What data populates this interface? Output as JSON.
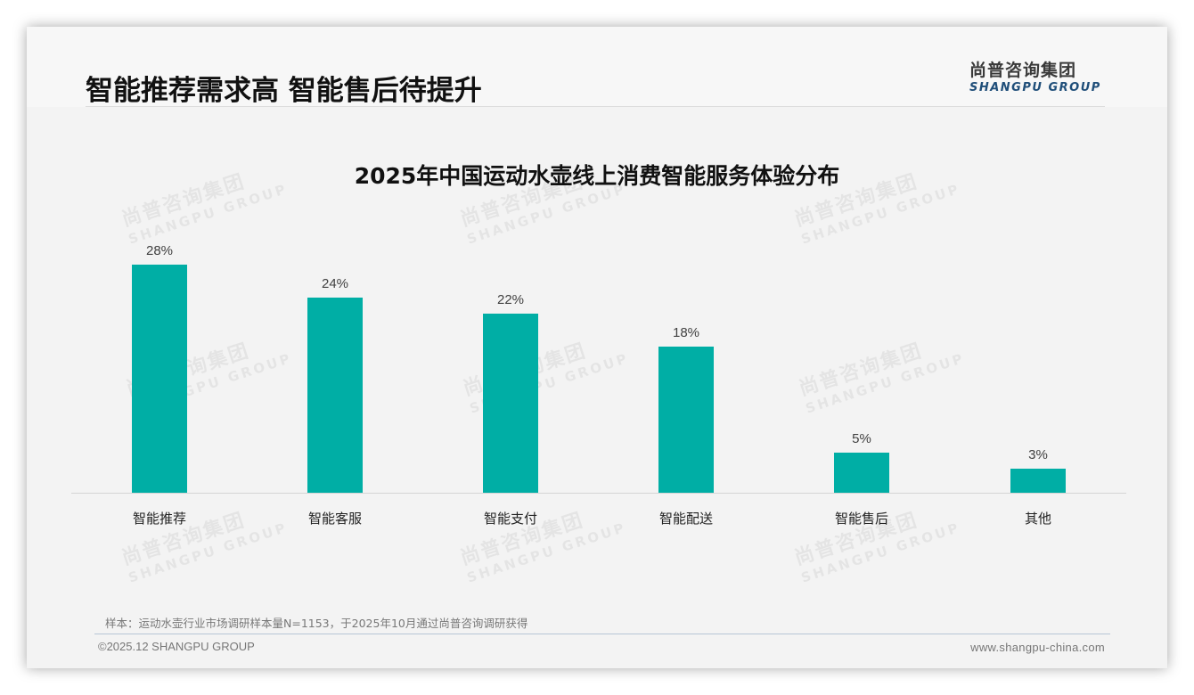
{
  "header": {
    "title": "智能推荐需求高 智能售后待提升",
    "logo_cn": "尚普咨询集团",
    "logo_en": "SHANGPU GROUP"
  },
  "watermark": {
    "cn": "尚普咨询集团",
    "en": "SHANGPU GROUP"
  },
  "colors": {
    "bar": "#00aea5",
    "logo_en": "#1f4e79"
  },
  "chart_data": {
    "type": "bar",
    "title": "2025年中国运动水壶线上消费智能服务体验分布",
    "categories": [
      "智能推荐",
      "智能客服",
      "智能支付",
      "智能配送",
      "智能售后",
      "其他"
    ],
    "values": [
      28,
      24,
      22,
      18,
      5,
      3
    ],
    "value_labels": [
      "28%",
      "24%",
      "22%",
      "18%",
      "5%",
      "3%"
    ],
    "xlabel": "",
    "ylabel": "",
    "ylim": [
      0,
      30
    ],
    "unit": "%",
    "grid": false,
    "legend": "none"
  },
  "footer": {
    "source": "样本：运动水壶行业市场调研样本量N=1153，于2025年10月通过尚普咨询调研获得",
    "copyright": "©2025.12 SHANGPU GROUP",
    "website": "www.shangpu-china.com"
  }
}
